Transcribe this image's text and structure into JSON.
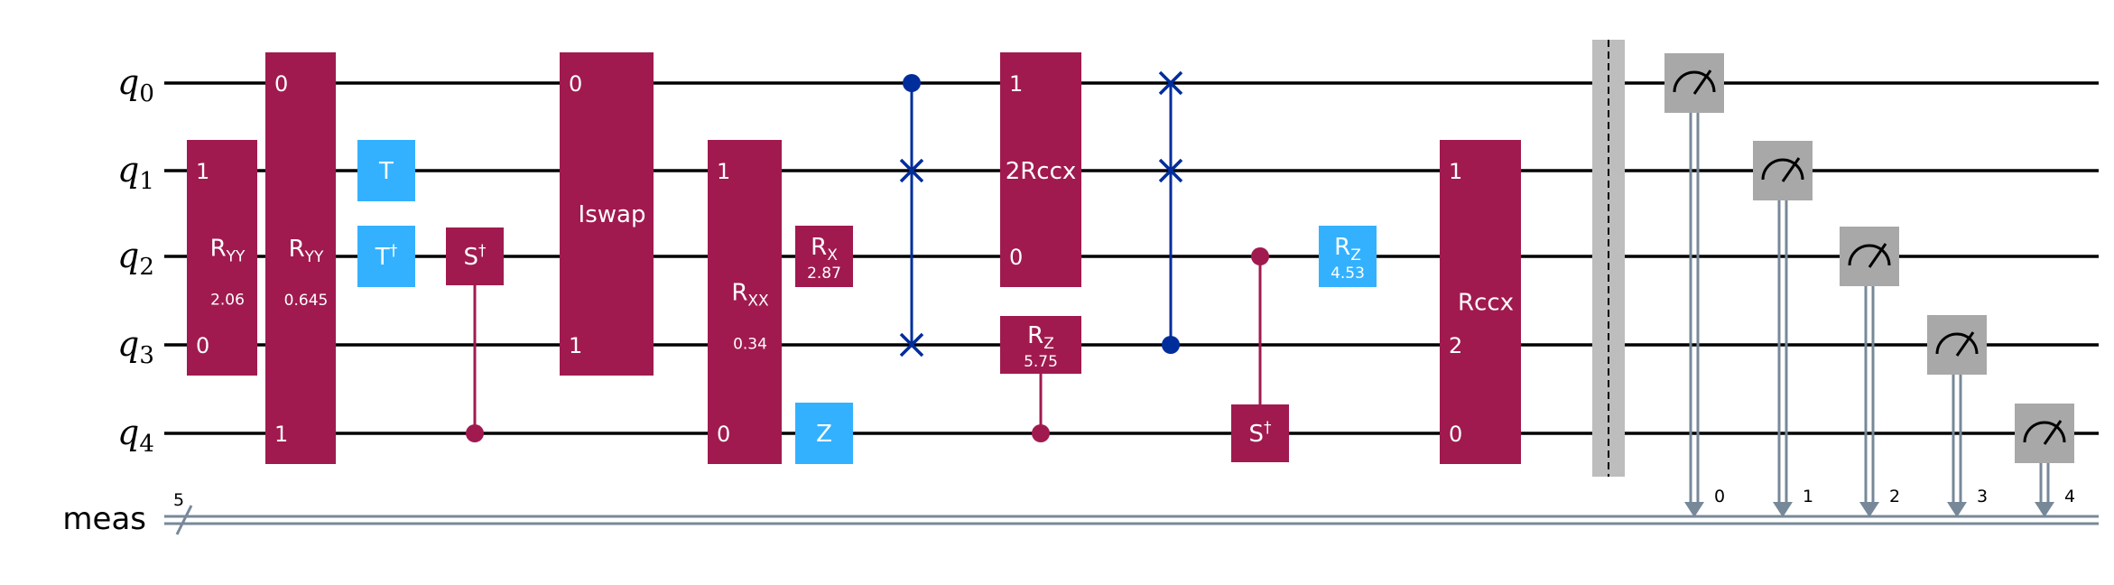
{
  "colors": {
    "wire": "#000000",
    "classical": "#778899",
    "multi_gate": "#a01a4f",
    "single_gate": "#33b1ff",
    "swap": "#002d9c",
    "measure": "#a8a8a8",
    "barrier": "#bdbdbd"
  },
  "qubits": [
    {
      "name": "q",
      "index": "0"
    },
    {
      "name": "q",
      "index": "1"
    },
    {
      "name": "q",
      "index": "2"
    },
    {
      "name": "q",
      "index": "3"
    },
    {
      "name": "q",
      "index": "4"
    }
  ],
  "classical_register": {
    "name": "meas",
    "size": "5"
  },
  "gates": [
    {
      "type": "box",
      "name": "R",
      "sub": "YY",
      "param": "2.06",
      "style": "multi",
      "qubits": [
        1,
        3
      ],
      "pins": [
        {
          "q": 1,
          "label": "1"
        },
        {
          "q": 3,
          "label": "0"
        }
      ],
      "col": 1
    },
    {
      "type": "box",
      "name": "R",
      "sub": "YY",
      "param": "0.645",
      "style": "multi",
      "qubits": [
        0,
        4
      ],
      "pins": [
        {
          "q": 0,
          "label": "0"
        },
        {
          "q": 4,
          "label": "1"
        }
      ],
      "col": 2
    },
    {
      "type": "box",
      "name": "T",
      "sup": "",
      "style": "single",
      "qubits": [
        1,
        1
      ],
      "col": 3
    },
    {
      "type": "box",
      "name": "T",
      "sup": "†",
      "style": "single",
      "qubits": [
        2,
        2
      ],
      "col": 3
    },
    {
      "type": "controlled",
      "name": "S",
      "sup": "†",
      "style": "multi",
      "target": 2,
      "controls": [
        4
      ],
      "col": 4
    },
    {
      "type": "box",
      "name": "Iswap",
      "style": "multi",
      "qubits": [
        0,
        3
      ],
      "pins": [
        {
          "q": 0,
          "label": "0"
        },
        {
          "q": 3,
          "label": "1"
        }
      ],
      "col": 5
    },
    {
      "type": "box",
      "name": "R",
      "sub": "XX",
      "param": "0.34",
      "style": "multi",
      "qubits": [
        1,
        4
      ],
      "pins": [
        {
          "q": 1,
          "label": "1"
        },
        {
          "q": 4,
          "label": "0"
        }
      ],
      "col": 6
    },
    {
      "type": "box",
      "name": "R",
      "sub": "X",
      "param": "2.87",
      "style": "multi",
      "qubits": [
        2,
        2
      ],
      "col": 7
    },
    {
      "type": "box",
      "name": "Z",
      "style": "single",
      "qubits": [
        4,
        4
      ],
      "col": 7
    },
    {
      "type": "cswap",
      "control": 0,
      "targets": [
        1,
        3
      ],
      "col": 8
    },
    {
      "type": "box",
      "name": "2Rccx",
      "style": "multi",
      "qubits": [
        0,
        2
      ],
      "pins": [
        {
          "q": 0,
          "label": "1"
        },
        {
          "q": 2,
          "label": "0"
        }
      ],
      "col": 9
    },
    {
      "type": "controlled",
      "name": "R",
      "sub": "Z",
      "param": "5.75",
      "style": "multi",
      "target": 3,
      "controls": [
        4
      ],
      "col": 9
    },
    {
      "type": "cswap",
      "control": 3,
      "targets": [
        0,
        1
      ],
      "col": 10
    },
    {
      "type": "controlled",
      "name": "S",
      "sup": "†",
      "style": "multi",
      "target": 4,
      "controls": [
        2
      ],
      "col": 11
    },
    {
      "type": "box",
      "name": "R",
      "sub": "Z",
      "param": "4.53",
      "style": "single",
      "qubits": [
        2,
        2
      ],
      "col": 12
    },
    {
      "type": "box",
      "name": "Rccx",
      "style": "multi",
      "qubits": [
        1,
        4
      ],
      "pins": [
        {
          "q": 1,
          "label": "1"
        },
        {
          "q": 3,
          "label": "2"
        },
        {
          "q": 4,
          "label": "0"
        }
      ],
      "col": 13
    },
    {
      "type": "barrier",
      "qubits": [
        0,
        4
      ],
      "col": 14
    },
    {
      "type": "measure",
      "qubit": 0,
      "clbit": "0",
      "col": 15
    },
    {
      "type": "measure",
      "qubit": 1,
      "clbit": "1",
      "col": 16
    },
    {
      "type": "measure",
      "qubit": 2,
      "clbit": "2",
      "col": 17
    },
    {
      "type": "measure",
      "qubit": 3,
      "clbit": "3",
      "col": 18
    },
    {
      "type": "measure",
      "qubit": 4,
      "clbit": "4",
      "col": 19
    }
  ]
}
